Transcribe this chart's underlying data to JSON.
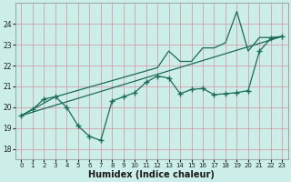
{
  "xlabel": "Humidex (Indice chaleur)",
  "bg_color": "#cceee8",
  "grid_color": "#b0d8d0",
  "line_color": "#1a6b5a",
  "xlim": [
    -0.5,
    23.5
  ],
  "ylim": [
    17.5,
    25.0
  ],
  "yticks": [
    18,
    19,
    20,
    21,
    22,
    23,
    24
  ],
  "xticks": [
    0,
    1,
    2,
    3,
    4,
    5,
    6,
    7,
    8,
    9,
    10,
    11,
    12,
    13,
    14,
    15,
    16,
    17,
    18,
    19,
    20,
    21,
    22,
    23
  ],
  "series1_x": [
    0,
    1,
    2,
    3,
    4,
    5,
    6,
    7,
    8,
    9,
    10,
    11,
    12,
    13,
    14,
    15,
    16,
    17,
    18,
    19,
    20,
    21,
    22,
    23
  ],
  "series1_y": [
    19.6,
    19.9,
    20.4,
    20.5,
    20.0,
    19.1,
    18.6,
    18.4,
    20.3,
    20.5,
    20.7,
    21.2,
    21.5,
    21.4,
    20.65,
    20.85,
    20.9,
    20.6,
    20.65,
    20.7,
    20.8,
    22.7,
    23.3,
    23.4
  ],
  "series2_x": [
    0,
    3,
    12,
    13,
    14,
    15,
    16,
    17,
    18,
    19,
    20,
    21,
    22,
    23
  ],
  "series2_y": [
    19.6,
    20.5,
    21.9,
    22.7,
    22.2,
    22.2,
    22.85,
    22.85,
    23.1,
    24.6,
    22.7,
    23.35,
    23.35,
    23.4
  ],
  "series3_x": [
    0,
    23
  ],
  "series3_y": [
    19.6,
    23.4
  ]
}
